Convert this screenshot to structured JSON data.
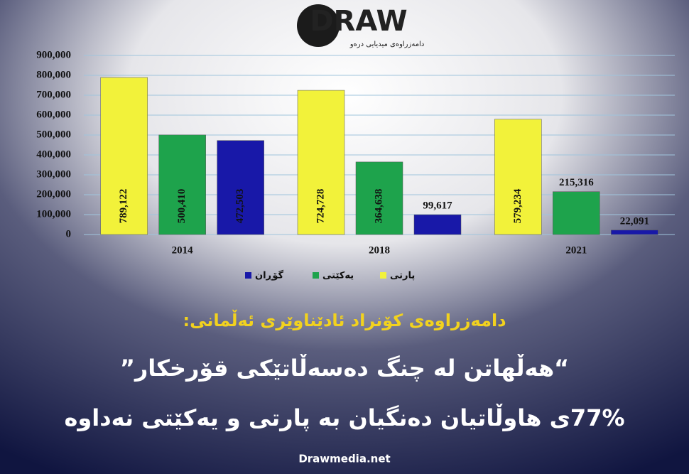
{
  "header": {
    "logo": "DRAW",
    "tagline": "دامەزراوەی میدیایی درەو"
  },
  "chart_data": {
    "type": "bar",
    "categories": [
      "2014",
      "2018",
      "2021"
    ],
    "series": [
      {
        "name": "پارتی",
        "color": "#f2f23a",
        "values": [
          789122,
          724728,
          579234
        ],
        "value_labels": [
          "789,122",
          "724,728",
          "579,234"
        ]
      },
      {
        "name": "یەکێتی",
        "color": "#1ea34c",
        "values": [
          500410,
          364638,
          215316
        ],
        "value_labels": [
          "500,410",
          "364,638",
          "215,316"
        ]
      },
      {
        "name": "گۆڕان",
        "color": "#1818a8",
        "values": [
          472503,
          99617,
          22091
        ],
        "value_labels": [
          "472,503",
          "99,617",
          "22,091"
        ]
      }
    ],
    "ylim": [
      0,
      900000
    ],
    "yticks": [
      0,
      {
        "value": 100000,
        "label": "100,000"
      },
      {
        "value": 200000,
        "label": "200,000"
      },
      {
        "value": 300000,
        "label": "300,000"
      },
      {
        "value": 400000,
        "label": "400,000"
      },
      {
        "value": 500000,
        "label": "500,000"
      },
      {
        "value": 600000,
        "label": "600,000"
      },
      {
        "value": 700000,
        "label": "700,000"
      },
      {
        "value": 800000,
        "label": "800,000"
      },
      {
        "value": 900000,
        "label": "900,000"
      }
    ],
    "grid": true
  },
  "headline": "دامەزراوەی کۆنراد ئادێناوێری ئەڵمانی:",
  "quote": "“هەڵهاتن لە چنگ دەسەڵاتێکی قۆرخکار”",
  "statement": "77%ی هاوڵاتیان دەنگیان بە پارتی و یەکێتی نەداوە",
  "footer": "Drawmedia.net"
}
